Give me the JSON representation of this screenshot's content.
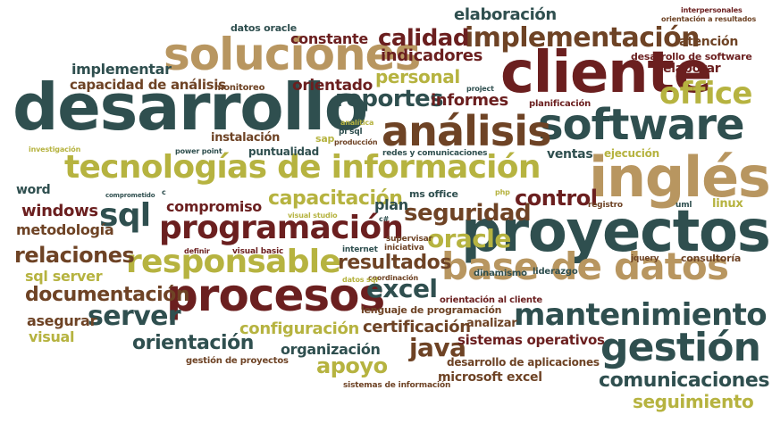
{
  "palette": {
    "teal": "#2f4f4f",
    "maroon": "#6b1f1f",
    "olive": "#b6b340",
    "tan": "#b89660",
    "brown": "#6e4325",
    "darkred": "#7a2a1c"
  },
  "words": [
    {
      "text": "desarrollo",
      "color": "teal"
    },
    {
      "text": "proyectos",
      "color": "teal"
    },
    {
      "text": "cliente",
      "color": "maroon"
    },
    {
      "text": "soluciones",
      "color": "tan"
    },
    {
      "text": "tecnologías de información",
      "color": "olive"
    },
    {
      "text": "inglés",
      "color": "tan"
    },
    {
      "text": "software",
      "color": "teal"
    },
    {
      "text": "análisis",
      "color": "brown"
    },
    {
      "text": "implementación",
      "color": "brown"
    },
    {
      "text": "base de datos",
      "color": "tan"
    },
    {
      "text": "procesos",
      "color": "maroon"
    },
    {
      "text": "responsable",
      "color": "olive"
    },
    {
      "text": "programación",
      "color": "maroon"
    },
    {
      "text": "gestión",
      "color": "teal"
    },
    {
      "text": "mantenimiento",
      "color": "teal"
    },
    {
      "text": "sql",
      "color": "teal"
    },
    {
      "text": "office",
      "color": "olive"
    },
    {
      "text": "oracle",
      "color": "olive"
    },
    {
      "text": "server",
      "color": "teal"
    },
    {
      "text": "excel",
      "color": "teal"
    },
    {
      "text": "seguridad",
      "color": "brown"
    },
    {
      "text": "control",
      "color": "maroon"
    },
    {
      "text": "calidad",
      "color": "maroon"
    },
    {
      "text": "reportes",
      "color": "teal"
    },
    {
      "text": "capacitación",
      "color": "olive"
    },
    {
      "text": "java",
      "color": "brown"
    },
    {
      "text": "resultados",
      "color": "brown"
    },
    {
      "text": "relaciones",
      "color": "brown"
    },
    {
      "text": "apoyo",
      "color": "olive"
    },
    {
      "text": "orientación",
      "color": "teal"
    },
    {
      "text": "documentación",
      "color": "brown"
    },
    {
      "text": "comunicaciones",
      "color": "teal"
    },
    {
      "text": "seguimiento",
      "color": "olive"
    },
    {
      "text": "elaboración",
      "color": "teal"
    },
    {
      "text": "indicadores",
      "color": "maroon"
    },
    {
      "text": "personal",
      "color": "olive"
    },
    {
      "text": "informes",
      "color": "maroon"
    },
    {
      "text": "orientado",
      "color": "maroon"
    },
    {
      "text": "constante",
      "color": "maroon"
    },
    {
      "text": "implementar",
      "color": "teal"
    },
    {
      "text": "capacidad de análisis",
      "color": "brown"
    },
    {
      "text": "windows",
      "color": "maroon"
    },
    {
      "text": "metodología",
      "color": "brown"
    },
    {
      "text": "sql server",
      "color": "olive"
    },
    {
      "text": "configuración",
      "color": "olive"
    },
    {
      "text": "organización",
      "color": "teal"
    },
    {
      "text": "certificación",
      "color": "brown"
    },
    {
      "text": "sistemas operativos",
      "color": "maroon"
    },
    {
      "text": "compromiso",
      "color": "maroon"
    },
    {
      "text": "asegurar",
      "color": "brown"
    },
    {
      "text": "visual",
      "color": "olive"
    },
    {
      "text": "plan",
      "color": "teal"
    },
    {
      "text": "ventas",
      "color": "teal"
    },
    {
      "text": "atención",
      "color": "brown"
    },
    {
      "text": "elaborar",
      "color": "maroon"
    },
    {
      "text": "instalación",
      "color": "brown"
    },
    {
      "text": "puntualidad",
      "color": "teal"
    },
    {
      "text": "word",
      "color": "teal"
    },
    {
      "text": "microsoft excel",
      "color": "brown"
    },
    {
      "text": "desarrollo de aplicaciones",
      "color": "brown"
    },
    {
      "text": "lenguaje de programación",
      "color": "brown"
    },
    {
      "text": "analizar",
      "color": "brown"
    },
    {
      "text": "redes y comunicaciones",
      "color": "teal"
    },
    {
      "text": "gestión de proyectos",
      "color": "brown"
    },
    {
      "text": "sistemas de información",
      "color": "brown"
    },
    {
      "text": "ms office",
      "color": "teal"
    },
    {
      "text": "ejecución",
      "color": "olive"
    },
    {
      "text": "planificación",
      "color": "maroon"
    },
    {
      "text": "desarrollo de software",
      "color": "maroon"
    },
    {
      "text": "consultoría",
      "color": "brown"
    },
    {
      "text": "linux",
      "color": "olive"
    },
    {
      "text": "uml",
      "color": "teal"
    },
    {
      "text": "registro",
      "color": "brown"
    },
    {
      "text": "liderazgo",
      "color": "teal"
    },
    {
      "text": "jquery",
      "color": "brown"
    },
    {
      "text": "dinamismo",
      "color": "teal"
    },
    {
      "text": "orientación al cliente",
      "color": "maroon"
    },
    {
      "text": "supervisar",
      "color": "brown"
    },
    {
      "text": "iniciativa",
      "color": "brown"
    },
    {
      "text": "internet",
      "color": "teal"
    },
    {
      "text": "coordinación",
      "color": "brown"
    },
    {
      "text": "datos sql",
      "color": "olive"
    },
    {
      "text": "visual basic",
      "color": "maroon"
    },
    {
      "text": "definir",
      "color": "maroon"
    },
    {
      "text": "visual studio",
      "color": "olive"
    },
    {
      "text": "c#",
      "color": "teal"
    },
    {
      "text": "c",
      "color": "teal"
    },
    {
      "text": "comprometido",
      "color": "teal"
    },
    {
      "text": "power point",
      "color": "teal"
    },
    {
      "text": "investigación",
      "color": "olive"
    },
    {
      "text": "analítica",
      "color": "olive"
    },
    {
      "text": "pl sql",
      "color": "teal"
    },
    {
      "text": "producción",
      "color": "brown"
    },
    {
      "text": "sap",
      "color": "olive"
    },
    {
      "text": "project",
      "color": "teal"
    },
    {
      "text": "php",
      "color": "olive"
    },
    {
      "text": "monitoreo",
      "color": "brown"
    },
    {
      "text": "datos oracle",
      "color": "teal"
    },
    {
      "text": "interpersonales",
      "color": "maroon"
    },
    {
      "text": "orientación a resultados",
      "color": "brown"
    }
  ]
}
